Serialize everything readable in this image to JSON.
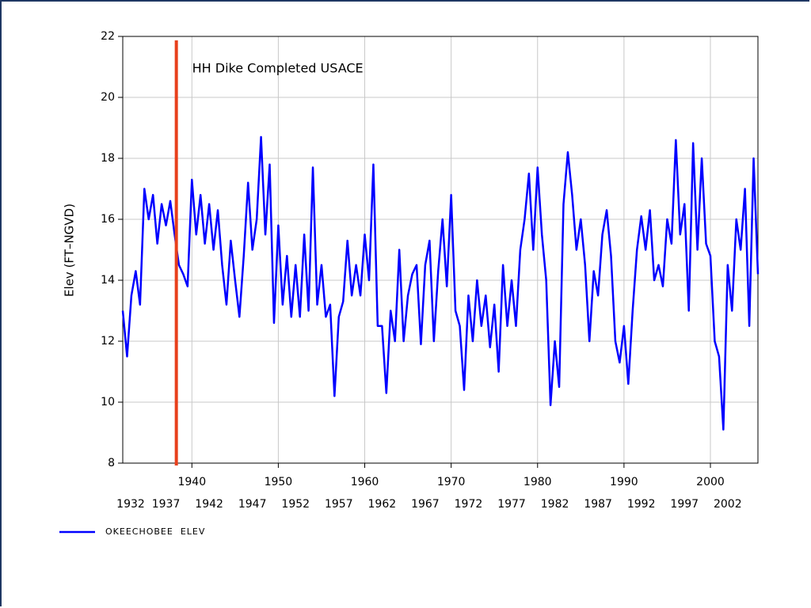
{
  "chart_data": {
    "type": "line",
    "y_label": "Elev (FT–NGVD)",
    "xlim": [
      1932,
      2005.5
    ],
    "ylim": [
      8,
      22
    ],
    "xticks": [
      1940,
      1950,
      1960,
      1970,
      1980,
      1990,
      2000
    ],
    "xticks_secondary": [
      1932,
      1937,
      1942,
      1947,
      1952,
      1957,
      1962,
      1967,
      1972,
      1977,
      1982,
      1987,
      1992,
      1997,
      2002
    ],
    "yticks": [
      8,
      10,
      12,
      14,
      16,
      18,
      20,
      22
    ],
    "grid": true,
    "annotations": [
      {
        "x": 1938.2,
        "text": "HH Dike Completed USACE",
        "color": "#e8401c"
      }
    ],
    "x": [
      1932,
      1932.5,
      1933,
      1933.5,
      1934,
      1934.5,
      1935,
      1935.5,
      1936,
      1936.5,
      1937,
      1937.5,
      1938,
      1938.5,
      1939,
      1939.5,
      1940,
      1940.5,
      1941,
      1941.5,
      1942,
      1942.5,
      1943,
      1943.5,
      1944,
      1944.5,
      1945,
      1945.5,
      1946,
      1946.5,
      1947,
      1947.5,
      1948,
      1948.5,
      1949,
      1949.5,
      1950,
      1950.5,
      1951,
      1951.5,
      1952,
      1952.5,
      1953,
      1953.5,
      1954,
      1954.5,
      1955,
      1955.5,
      1956,
      1956.5,
      1957,
      1957.5,
      1958,
      1958.5,
      1959,
      1959.5,
      1960,
      1960.5,
      1961,
      1961.5,
      1962,
      1962.5,
      1963,
      1963.5,
      1964,
      1964.5,
      1965,
      1965.5,
      1966,
      1966.5,
      1967,
      1967.5,
      1968,
      1968.5,
      1969,
      1969.5,
      1970,
      1970.5,
      1971,
      1971.5,
      1972,
      1972.5,
      1973,
      1973.5,
      1974,
      1974.5,
      1975,
      1975.5,
      1976,
      1976.5,
      1977,
      1977.5,
      1978,
      1978.5,
      1979,
      1979.5,
      1980,
      1980.5,
      1981,
      1981.5,
      1982,
      1982.5,
      1983,
      1983.5,
      1984,
      1984.5,
      1985,
      1985.5,
      1986,
      1986.5,
      1987,
      1987.5,
      1988,
      1988.5,
      1989,
      1989.5,
      1990,
      1990.5,
      1991,
      1991.5,
      1992,
      1992.5,
      1993,
      1993.5,
      1994,
      1994.5,
      1995,
      1995.5,
      1996,
      1996.5,
      1997,
      1997.5,
      1998,
      1998.5,
      1999,
      1999.5,
      2000,
      2000.5,
      2001,
      2001.5,
      2002,
      2002.5,
      2003,
      2003.5,
      2004,
      2004.5,
      2005,
      2005.5
    ],
    "series": [
      {
        "name": "OKEECHOBEE  ELEV",
        "color": "#0000ff",
        "values": [
          13.0,
          11.5,
          13.5,
          14.3,
          13.2,
          17.0,
          16.0,
          16.8,
          15.2,
          16.5,
          15.8,
          16.6,
          15.5,
          14.5,
          14.2,
          13.8,
          17.3,
          15.5,
          16.8,
          15.2,
          16.5,
          15.0,
          16.3,
          14.5,
          13.2,
          15.3,
          14.0,
          12.8,
          14.8,
          17.2,
          15.0,
          16.0,
          18.7,
          15.5,
          17.8,
          12.6,
          15.8,
          13.2,
          14.8,
          12.8,
          14.5,
          12.8,
          15.5,
          13.0,
          17.7,
          13.2,
          14.5,
          12.8,
          13.2,
          10.2,
          12.8,
          13.3,
          15.3,
          13.5,
          14.5,
          13.5,
          15.5,
          14.0,
          17.8,
          12.5,
          12.5,
          10.3,
          13.0,
          12.0,
          15.0,
          12.0,
          13.5,
          14.2,
          14.5,
          11.9,
          14.5,
          15.3,
          12.0,
          14.3,
          16.0,
          13.8,
          16.8,
          13.0,
          12.5,
          10.4,
          13.5,
          12.0,
          14.0,
          12.5,
          13.5,
          11.8,
          13.2,
          11.0,
          14.5,
          12.5,
          14.0,
          12.5,
          15.0,
          16.0,
          17.5,
          15.0,
          17.7,
          15.5,
          14.0,
          9.9,
          12.0,
          10.5,
          16.5,
          18.2,
          16.8,
          15.0,
          16.0,
          14.5,
          12.0,
          14.3,
          13.5,
          15.5,
          16.3,
          14.8,
          12.0,
          11.3,
          12.5,
          10.6,
          13.0,
          15.0,
          16.1,
          15.0,
          16.3,
          14.0,
          14.5,
          13.8,
          16.0,
          15.2,
          18.6,
          15.5,
          16.5,
          13.0,
          18.5,
          15.0,
          18.0,
          15.2,
          14.8,
          12.0,
          11.5,
          9.1,
          14.5,
          13.0,
          16.0,
          15.0,
          17.0,
          12.5,
          18.0,
          14.2
        ]
      }
    ]
  }
}
